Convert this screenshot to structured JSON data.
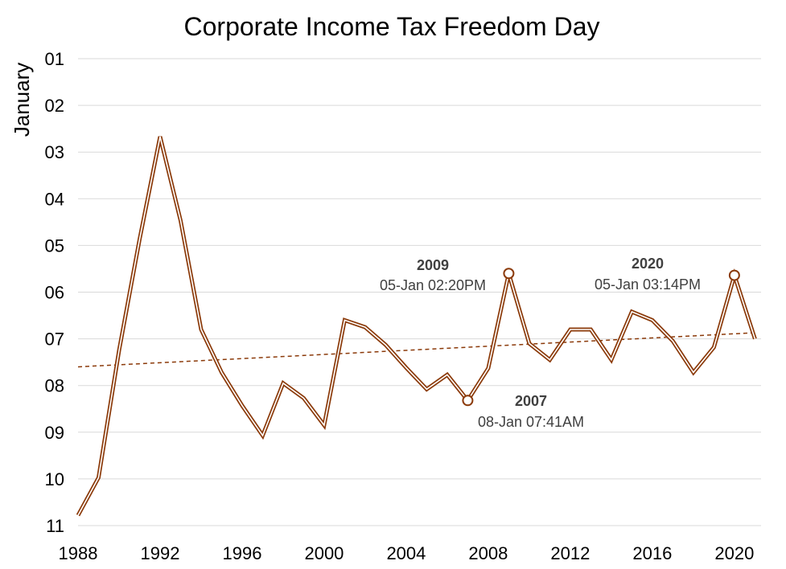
{
  "chart_data": {
    "type": "line",
    "title": "Corporate Income Tax Freedom Day",
    "xlabel": "",
    "ylabel": "January",
    "x_ticks": [
      "1988",
      "1992",
      "1996",
      "2000",
      "2004",
      "2008",
      "2012",
      "2016",
      "2020"
    ],
    "y_ticks": [
      "01",
      "02",
      "03",
      "04",
      "05",
      "06",
      "07",
      "08",
      "09",
      "10",
      "11"
    ],
    "xlim": [
      1988,
      2021.3
    ],
    "ylim": [
      1,
      11
    ],
    "y_inverted": true,
    "grid": "horizontal",
    "legend": "none",
    "series": [
      {
        "x": [
          1988,
          1989,
          1990,
          1991,
          1992,
          1993,
          1994,
          1995,
          1996,
          1997,
          1998,
          1999,
          2000,
          2001,
          2002,
          2003,
          2004,
          2005,
          2006,
          2007,
          2008,
          2009,
          2010,
          2011,
          2012,
          2013,
          2014,
          2015,
          2016,
          2017,
          2018,
          2019,
          2020,
          2021
        ],
        "y": [
          10.78,
          9.97,
          7.25,
          4.87,
          2.67,
          4.47,
          6.8,
          7.72,
          8.43,
          9.07,
          7.95,
          8.27,
          8.85,
          6.6,
          6.75,
          7.13,
          7.62,
          8.08,
          7.77,
          8.32,
          7.63,
          5.6,
          7.1,
          7.45,
          6.8,
          6.8,
          7.45,
          6.42,
          6.6,
          7.05,
          7.72,
          7.18,
          5.64,
          7.0
        ]
      }
    ],
    "trendline": {
      "style": "dashed",
      "x": [
        1988,
        2021
      ],
      "y": [
        7.6,
        6.87
      ]
    },
    "highlighted_points": [
      {
        "x": 2009,
        "y": 5.6
      },
      {
        "x": 2007,
        "y": 8.32
      },
      {
        "x": 2020,
        "y": 5.64
      }
    ],
    "annotations": [
      {
        "year": "2009",
        "text": "05-Jan 02:20PM"
      },
      {
        "year": "2007",
        "text": "08-Jan 07:41AM"
      },
      {
        "year": "2020",
        "text": "05-Jan 03:14PM"
      }
    ],
    "colors": {
      "line": "#8B3A0A",
      "line_inner": "#ffffff",
      "trend": "#8B3A0A",
      "grid": "#d9d9d9",
      "annotation_text": "#404040"
    }
  }
}
